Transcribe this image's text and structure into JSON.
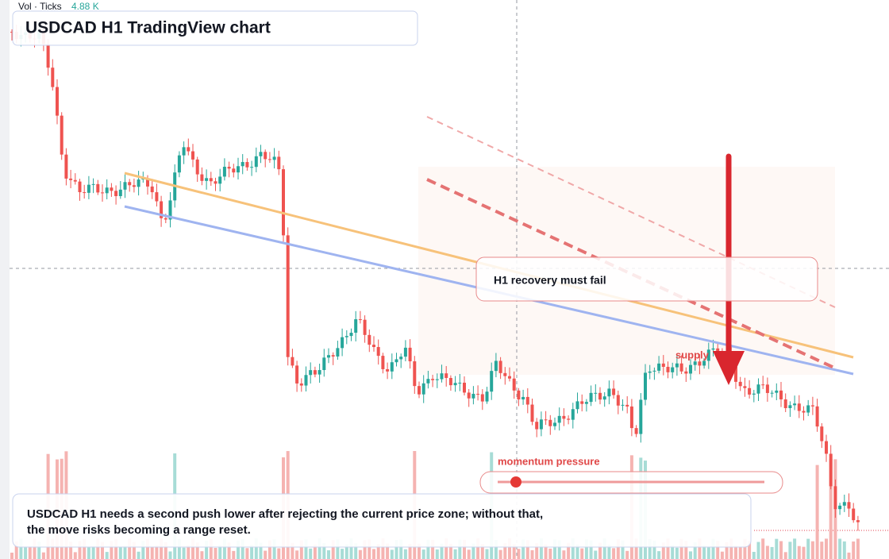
{
  "header": {
    "title": "USDCAD H1 TradingView chart"
  },
  "volume_legend": {
    "label": "Vol · Ticks",
    "value": "4.88 K"
  },
  "annotations": {
    "recovery": "H1 recovery must fail",
    "supply": "supply",
    "momentum": "momentum pressure"
  },
  "caption": {
    "lines": [
      "USDCAD H1 needs a second push lower after rejecting the current price zone; without that,",
      "the move risks becoming a range reset."
    ]
  }
}
